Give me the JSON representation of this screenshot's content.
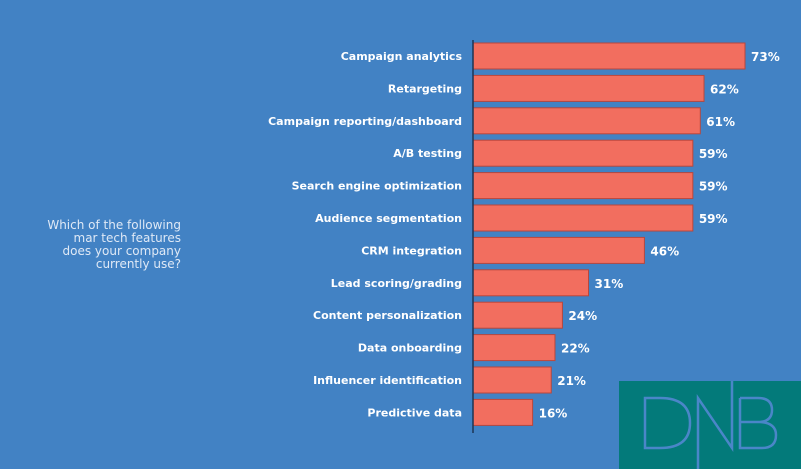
{
  "question": [
    "Which of the following",
    "mar tech features",
    "does your company",
    "currently use?"
  ],
  "logo": {
    "text": "DNB",
    "background": "#037a7a",
    "stroke": "#4a86c8"
  },
  "colors": {
    "background": "#4282c4",
    "bar": "#f26e5f",
    "bar_outline": "#b8473d"
  },
  "chart_data": {
    "type": "bar",
    "orientation": "horizontal",
    "categories": [
      "Campaign analytics",
      "Retargeting",
      "Campaign reporting/dashboard",
      "A/B testing",
      "Search engine optimization",
      "Audience segmentation",
      "CRM integration",
      "Lead scoring/grading",
      "Content personalization",
      "Data onboarding",
      "Influencer identification",
      "Predictive data"
    ],
    "values": [
      73,
      62,
      61,
      59,
      59,
      59,
      46,
      31,
      24,
      22,
      21,
      16
    ],
    "value_labels": [
      "73%",
      "62%",
      "61%",
      "59%",
      "59%",
      "59%",
      "46%",
      "31%",
      "24%",
      "22%",
      "21%",
      "16%"
    ],
    "unit": "%",
    "xlim": [
      0,
      73
    ],
    "grid": false
  }
}
